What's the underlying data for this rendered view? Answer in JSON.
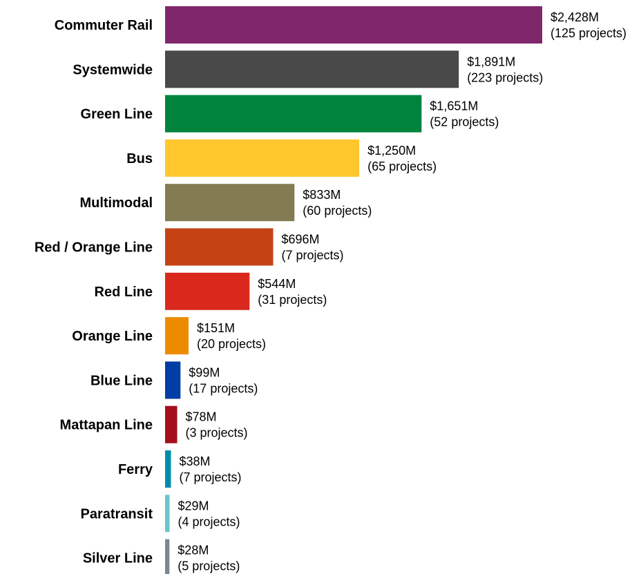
{
  "chart_data": {
    "type": "bar",
    "orientation": "horizontal",
    "title": "",
    "xlabel": "",
    "ylabel": "",
    "grid": false,
    "legend": "none",
    "unit": "$M",
    "categories": [
      "Commuter Rail",
      "Systemwide",
      "Green Line",
      "Bus",
      "Multimodal",
      "Red / Orange Line",
      "Red Line",
      "Orange Line",
      "Blue Line",
      "Mattapan Line",
      "Ferry",
      "Paratransit",
      "Silver Line"
    ],
    "values": [
      2428,
      1891,
      1651,
      1250,
      833,
      696,
      544,
      151,
      99,
      78,
      38,
      29,
      28
    ],
    "project_counts": [
      125,
      223,
      52,
      65,
      60,
      7,
      31,
      20,
      17,
      3,
      7,
      4,
      5
    ],
    "value_labels": [
      "$2,428M",
      "$1,891M",
      "$1,651M",
      "$1,250M",
      "$833M",
      "$696M",
      "$544M",
      "$151M",
      "$99M",
      "$78M",
      "$38M",
      "$29M",
      "$28M"
    ],
    "count_labels": [
      "(125 projects)",
      "(223 projects)",
      "(52 projects)",
      "(65 projects)",
      "(60 projects)",
      "(7 projects)",
      "(31 projects)",
      "(20 projects)",
      "(17 projects)",
      "(3 projects)",
      "(7 projects)",
      "(4 projects)",
      "(5 projects)"
    ],
    "colors": [
      "#80276C",
      "#494949",
      "#00843D",
      "#FFC72C",
      "#837B52",
      "#C54215",
      "#DA291C",
      "#ED8B00",
      "#003DA5",
      "#A50F1A",
      "#008EAA",
      "#6BC5CA",
      "#7C878E"
    ]
  }
}
